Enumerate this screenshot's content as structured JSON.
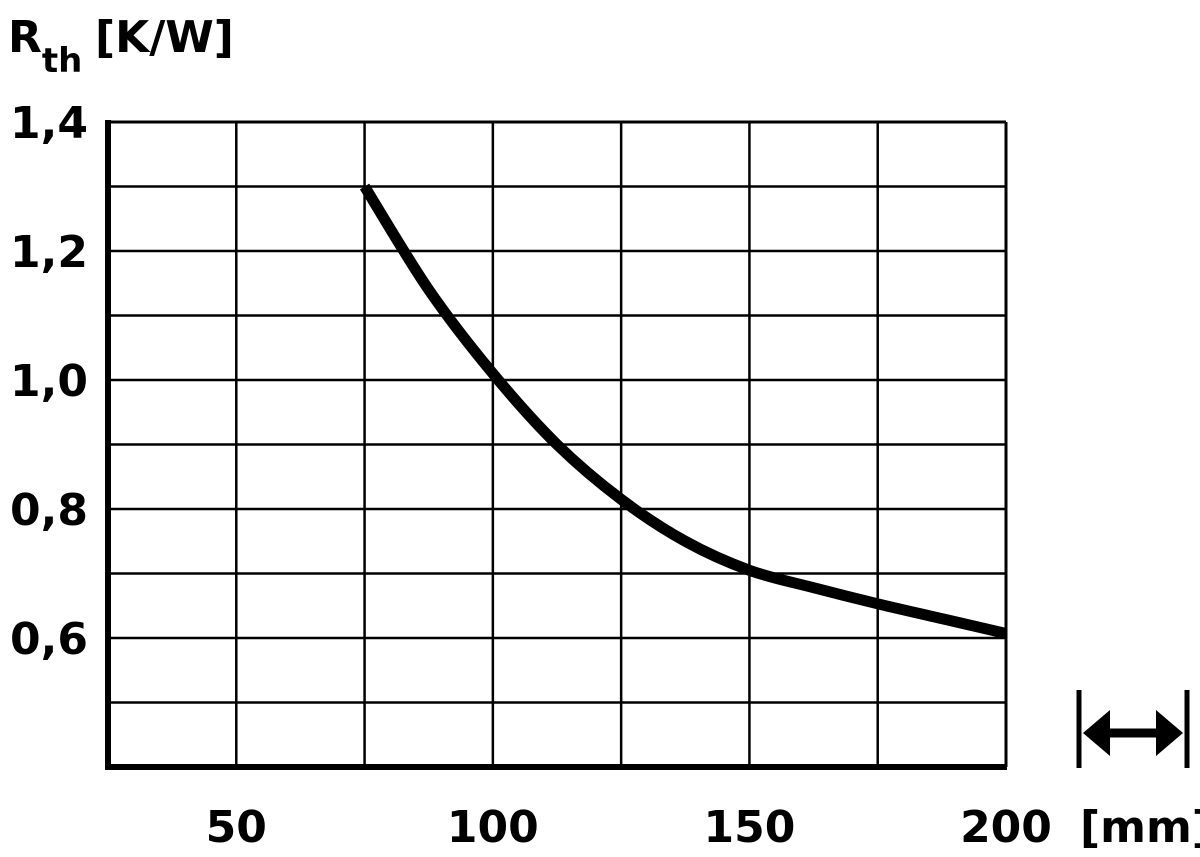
{
  "chart_data": {
    "type": "line",
    "ylabel_main": "R",
    "ylabel_sub": "th",
    "ylabel_unit": "[K/W]",
    "xlabel_unit": "[mm]",
    "xlim": [
      25,
      200
    ],
    "ylim": [
      0.4,
      1.4
    ],
    "grid": true,
    "x_gridlines": [
      50,
      75,
      100,
      125,
      150,
      175
    ],
    "y_gridlines": [
      0.5,
      0.6,
      0.7,
      0.8,
      0.9,
      1.0,
      1.1,
      1.2,
      1.3
    ],
    "x_ticks": [
      {
        "value": 50,
        "label": "50"
      },
      {
        "value": 100,
        "label": "100"
      },
      {
        "value": 150,
        "label": "150"
      },
      {
        "value": 200,
        "label": "200"
      }
    ],
    "y_ticks": [
      {
        "value": 1.4,
        "label": "1,4"
      },
      {
        "value": 1.2,
        "label": "1,2"
      },
      {
        "value": 1.0,
        "label": "1,0"
      },
      {
        "value": 0.8,
        "label": "0,8"
      },
      {
        "value": 0.6,
        "label": "0,6"
      }
    ],
    "series": [
      {
        "x": [
          75,
          87.5,
          100,
          112.5,
          125,
          137.5,
          150,
          162.5,
          175,
          187.5,
          200
        ],
        "y": [
          1.3,
          1.14,
          1.01,
          0.9,
          0.815,
          0.75,
          0.705,
          0.678,
          0.653,
          0.63,
          0.607
        ]
      }
    ],
    "length_symbol": "double-arrow-between-bars-icon"
  }
}
